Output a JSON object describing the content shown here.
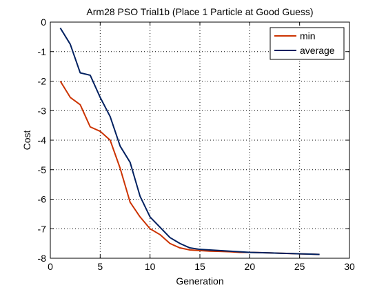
{
  "chart_data": {
    "type": "line",
    "title": "Arm28 PSO Trial1b (Place 1 Particle at Good Guess)",
    "xlabel": "Generation",
    "ylabel": "Cost",
    "xlim": [
      0,
      30
    ],
    "ylim": [
      -8,
      0
    ],
    "xticks": [
      0,
      5,
      10,
      15,
      20,
      25,
      30
    ],
    "yticks": [
      -8,
      -7,
      -6,
      -5,
      -4,
      -3,
      -2,
      -1,
      0
    ],
    "grid": true,
    "legend_position": "top-right",
    "series": [
      {
        "name": "min",
        "color": "#cc3300",
        "x": [
          1,
          2,
          3,
          4,
          5,
          6,
          7,
          8,
          9,
          10,
          11,
          12,
          13,
          14,
          15,
          16,
          17,
          18,
          19,
          20,
          21,
          22,
          23,
          24,
          25,
          26,
          27
        ],
        "y": [
          -2.0,
          -2.55,
          -2.8,
          -3.55,
          -3.7,
          -4.0,
          -4.95,
          -6.1,
          -6.6,
          -7.0,
          -7.2,
          -7.5,
          -7.65,
          -7.72,
          -7.74,
          -7.76,
          -7.77,
          -7.78,
          -7.8,
          -7.8,
          -7.81,
          -7.82,
          -7.83,
          -7.84,
          -7.85,
          -7.86,
          -7.87
        ]
      },
      {
        "name": "average",
        "color": "#002060",
        "x": [
          1,
          2,
          3,
          4,
          5,
          6,
          7,
          8,
          9,
          10,
          11,
          12,
          13,
          14,
          15,
          16,
          17,
          18,
          19,
          20,
          21,
          22,
          23,
          24,
          25,
          26,
          27
        ],
        "y": [
          -0.2,
          -0.75,
          -1.72,
          -1.8,
          -2.55,
          -3.2,
          -4.2,
          -4.75,
          -5.9,
          -6.6,
          -6.95,
          -7.3,
          -7.5,
          -7.65,
          -7.7,
          -7.72,
          -7.74,
          -7.76,
          -7.78,
          -7.8,
          -7.81,
          -7.82,
          -7.83,
          -7.84,
          -7.85,
          -7.86,
          -7.87
        ]
      }
    ]
  }
}
